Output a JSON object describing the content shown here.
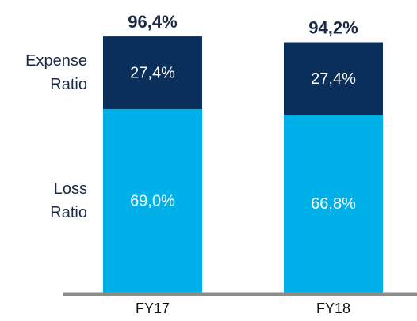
{
  "chart_data": {
    "type": "stacked-bar",
    "categories": [
      "FY17",
      "FY18"
    ],
    "series": [
      {
        "name": "Loss Ratio",
        "color": "#00b0e8",
        "values": [
          69.0,
          66.8
        ],
        "value_labels": [
          "69,0%",
          "66,8%"
        ]
      },
      {
        "name": "Expense Ratio",
        "color": "#0b2f5b",
        "values": [
          27.4,
          27.4
        ],
        "value_labels": [
          "27,4%",
          "27,4%"
        ]
      }
    ],
    "totals": [
      96.4,
      94.2
    ],
    "total_labels": [
      "96,4%",
      "94,2%"
    ]
  }
}
